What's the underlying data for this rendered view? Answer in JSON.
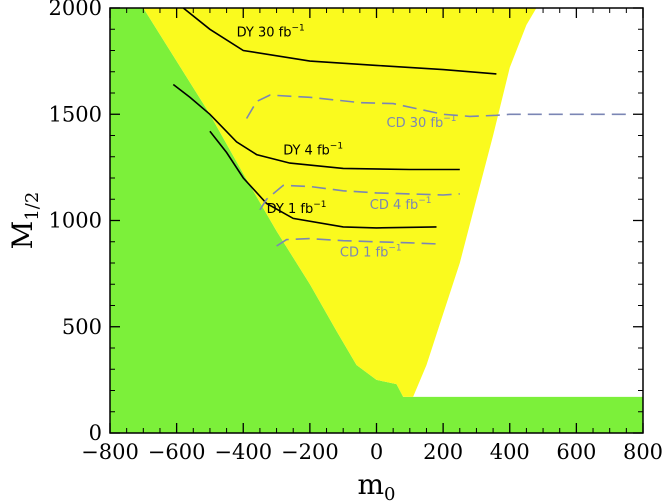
{
  "chart_data": {
    "type": "area",
    "xlabel": "m",
    "xlabel_sub": "0",
    "ylabel": "M",
    "ylabel_sub": "1/2",
    "xlim": [
      -800,
      800
    ],
    "ylim": [
      0,
      2000
    ],
    "xticks": [
      -800,
      -600,
      -400,
      -200,
      0,
      200,
      400,
      600,
      800
    ],
    "yticks": [
      0,
      500,
      1000,
      1500,
      2000
    ],
    "xtick_labels": [
      "−800",
      "−600",
      "−400",
      "−200",
      "0",
      "200",
      "400",
      "600",
      "800"
    ],
    "ytick_labels": [
      "0",
      "500",
      "1000",
      "1500",
      "2000"
    ],
    "colors": {
      "excluded": "#7cf03a",
      "allowed": "#fafa1e",
      "dy_curve": "#000000",
      "cd_curve": "#7b86b4",
      "frame": "#000000"
    },
    "regions": [
      {
        "kind": "excluded",
        "points": [
          [
            -800,
            0
          ],
          [
            -800,
            2000
          ],
          [
            -700,
            2000
          ],
          [
            -600,
            1750
          ],
          [
            -500,
            1500
          ],
          [
            -400,
            1220
          ],
          [
            -300,
            950
          ],
          [
            -200,
            700
          ],
          [
            -120,
            480
          ],
          [
            -60,
            320
          ],
          [
            0,
            250
          ],
          [
            60,
            230
          ],
          [
            80,
            170
          ],
          [
            800,
            170
          ],
          [
            800,
            0
          ]
        ]
      },
      {
        "kind": "allowed",
        "points": [
          [
            -700,
            2000
          ],
          [
            -600,
            1750
          ],
          [
            -500,
            1500
          ],
          [
            -400,
            1220
          ],
          [
            -300,
            950
          ],
          [
            -200,
            700
          ],
          [
            -120,
            480
          ],
          [
            -60,
            320
          ],
          [
            0,
            250
          ],
          [
            60,
            230
          ],
          [
            80,
            170
          ],
          [
            110,
            170
          ],
          [
            150,
            320
          ],
          [
            200,
            560
          ],
          [
            250,
            800
          ],
          [
            300,
            1100
          ],
          [
            350,
            1400
          ],
          [
            400,
            1720
          ],
          [
            450,
            1920
          ],
          [
            480,
            2000
          ]
        ]
      }
    ],
    "series": [
      {
        "style": "dy",
        "label": "DY 30 fb",
        "sup": "−1",
        "label_at": [
          -420,
          1865
        ],
        "points": [
          [
            -580,
            2000
          ],
          [
            -500,
            1900
          ],
          [
            -400,
            1800
          ],
          [
            -200,
            1750
          ],
          [
            0,
            1730
          ],
          [
            200,
            1710
          ],
          [
            360,
            1690
          ]
        ]
      },
      {
        "style": "dy",
        "label": "DY 4 fb",
        "sup": "−1",
        "label_at": [
          -280,
          1310
        ],
        "points": [
          [
            -610,
            1640
          ],
          [
            -560,
            1580
          ],
          [
            -500,
            1500
          ],
          [
            -420,
            1370
          ],
          [
            -360,
            1310
          ],
          [
            -260,
            1270
          ],
          [
            -100,
            1245
          ],
          [
            100,
            1240
          ],
          [
            250,
            1240
          ]
        ]
      },
      {
        "style": "dy",
        "label": "DY 1 fb",
        "sup": "−1",
        "label_at": [
          -330,
          1035
        ],
        "points": [
          [
            -500,
            1420
          ],
          [
            -450,
            1320
          ],
          [
            -400,
            1200
          ],
          [
            -330,
            1080
          ],
          [
            -250,
            1010
          ],
          [
            -100,
            970
          ],
          [
            0,
            965
          ],
          [
            180,
            970
          ]
        ]
      },
      {
        "style": "cd",
        "label": "CD 30 fb",
        "sup": "−1",
        "label_at": [
          30,
          1440
        ],
        "points": [
          [
            -390,
            1480
          ],
          [
            -360,
            1560
          ],
          [
            -320,
            1590
          ],
          [
            -200,
            1580
          ],
          [
            -50,
            1555
          ],
          [
            50,
            1550
          ],
          [
            200,
            1500
          ],
          [
            280,
            1490
          ],
          [
            360,
            1495
          ],
          [
            400,
            1500
          ],
          [
            700,
            1500
          ],
          [
            750,
            1500
          ]
        ]
      },
      {
        "style": "cd",
        "label": "CD 4 fb",
        "sup": "−1",
        "label_at": [
          -20,
          1055
        ],
        "points": [
          [
            -350,
            1050
          ],
          [
            -330,
            1100
          ],
          [
            -280,
            1165
          ],
          [
            -200,
            1160
          ],
          [
            -100,
            1140
          ],
          [
            0,
            1130
          ],
          [
            100,
            1125
          ],
          [
            200,
            1120
          ],
          [
            250,
            1125
          ]
        ]
      },
      {
        "style": "cd",
        "label": "CD 1 fb",
        "sup": "−1",
        "label_at": [
          -110,
          830
        ],
        "points": [
          [
            -300,
            880
          ],
          [
            -270,
            910
          ],
          [
            -200,
            915
          ],
          [
            -100,
            905
          ],
          [
            0,
            900
          ],
          [
            100,
            895
          ],
          [
            180,
            890
          ]
        ]
      }
    ]
  }
}
